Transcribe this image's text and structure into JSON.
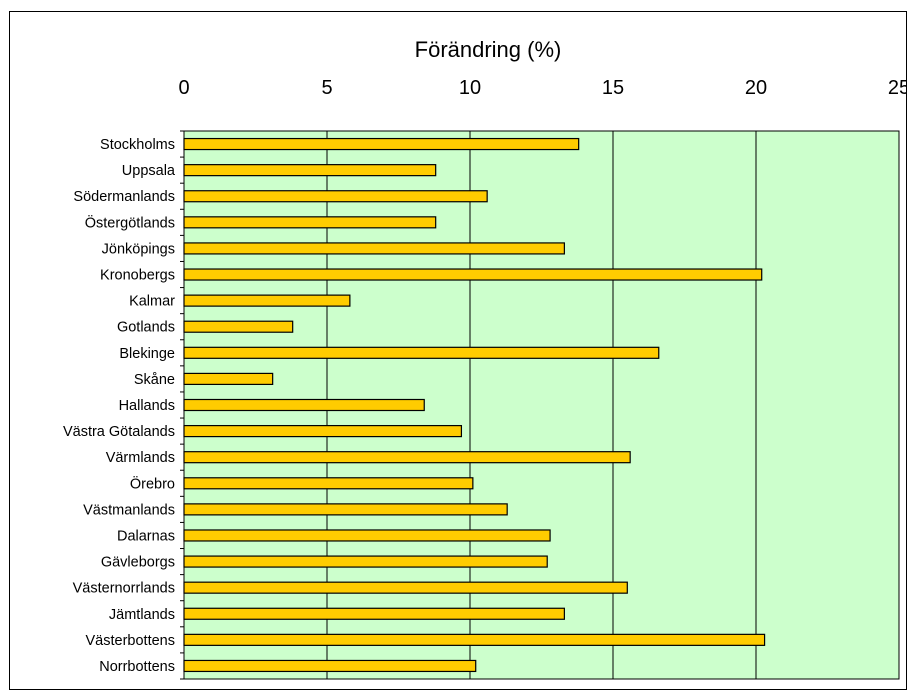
{
  "chart_data": {
    "type": "bar",
    "orientation": "horizontal",
    "title": "",
    "xlabel": "Förändring (%)",
    "ylabel": "",
    "xlim": [
      0,
      25
    ],
    "x_ticks": [
      "0",
      "5",
      "10",
      "15",
      "20",
      "25"
    ],
    "x_axis_position": "top",
    "grid": "vertical",
    "categories": [
      "Stockholms",
      "Uppsala",
      "Södermanlands",
      "Östergötlands",
      "Jönköpings",
      "Kronobergs",
      "Kalmar",
      "Gotlands",
      "Blekinge",
      "Skåne",
      "Hallands",
      "Västra Götalands",
      "Värmlands",
      "Örebro",
      "Västmanlands",
      "Dalarnas",
      "Gävleborgs",
      "Västernorrlands",
      "Jämtlands",
      "Västerbottens",
      "Norrbottens"
    ],
    "values": [
      13.8,
      8.8,
      10.6,
      8.8,
      13.3,
      20.2,
      5.8,
      3.8,
      16.6,
      3.1,
      8.4,
      9.7,
      15.6,
      10.1,
      11.3,
      12.8,
      12.7,
      15.5,
      13.3,
      20.3,
      10.2
    ]
  },
  "colors": {
    "plot_background": "#ccffcc",
    "bar_fill": "#ffcc00",
    "bar_stroke": "#000000",
    "grid": "#000000"
  }
}
